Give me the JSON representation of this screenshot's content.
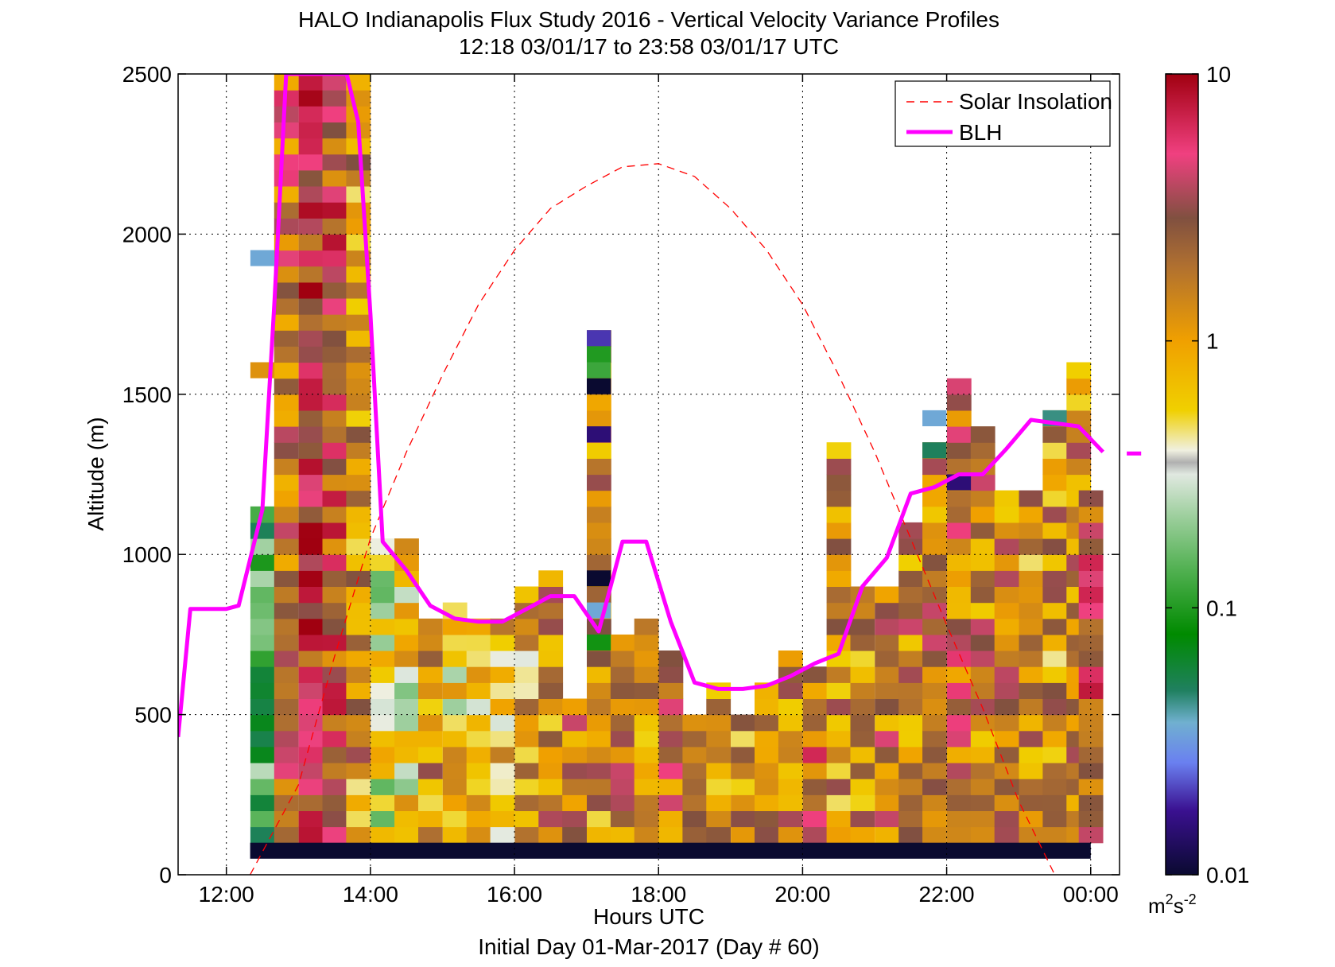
{
  "chart_data": {
    "type": "heatmap",
    "title_line1": "HALO Indianapolis Flux Study 2016 - Vertical Velocity Variance Profiles",
    "title_line2": "12:18 03/01/17 to 23:58 03/01/17  UTC",
    "xlabel": "Hours UTC",
    "xlabel2": "Initial Day 01-Mar-2017 (Day # 60)",
    "ylabel": "Altitude (m)",
    "xlim": [
      11.33,
      24.4
    ],
    "ylim": [
      0,
      2500
    ],
    "x_ticks": [
      12,
      14,
      16,
      18,
      20,
      22,
      24
    ],
    "x_tick_labels": [
      "12:00",
      "14:00",
      "16:00",
      "18:00",
      "20:00",
      "22:00",
      "00:00"
    ],
    "y_ticks": [
      0,
      500,
      1000,
      1500,
      2000,
      2500
    ],
    "y_tick_labels": [
      "0",
      "500",
      "1000",
      "1500",
      "2000",
      "2500"
    ],
    "grid": true,
    "legend_position": "top-right",
    "colorbar": {
      "scale": "log",
      "min": 0.01,
      "max": 10,
      "tick_values": [
        0.01,
        0.1,
        1,
        10
      ],
      "tick_labels": [
        "0.01",
        "0.1",
        "1",
        "10"
      ],
      "units_base": "m",
      "units_exp1": "2",
      "units_mid": "s",
      "units_exp2": "-2"
    },
    "bin_width_hours": 0.333,
    "bin_height_m": 50,
    "columns": [
      {
        "t": 12.5,
        "top": 1150,
        "val": 0.12
      },
      {
        "t": 12.83,
        "top": 2500,
        "val": 2.2
      },
      {
        "t": 13.17,
        "top": 2500,
        "val": 4.5
      },
      {
        "t": 13.5,
        "top": 2500,
        "val": 3.0
      },
      {
        "t": 13.83,
        "top": 2500,
        "val": 1.2
      },
      {
        "t": 14.17,
        "top": 1050,
        "val": 0.35
      },
      {
        "t": 14.5,
        "top": 1050,
        "val": 0.5
      },
      {
        "t": 14.83,
        "top": 800,
        "val": 1.2
      },
      {
        "t": 15.17,
        "top": 850,
        "val": 0.6
      },
      {
        "t": 15.5,
        "top": 800,
        "val": 0.7
      },
      {
        "t": 15.83,
        "top": 800,
        "val": 0.8
      },
      {
        "t": 16.17,
        "top": 900,
        "val": 0.9
      },
      {
        "t": 16.5,
        "top": 950,
        "val": 1.3
      },
      {
        "t": 16.83,
        "top": 550,
        "val": 1.6
      },
      {
        "t": 17.17,
        "top": 1700,
        "val": 1.4
      },
      {
        "t": 17.5,
        "top": 750,
        "val": 2.0
      },
      {
        "t": 17.83,
        "top": 800,
        "val": 1.1
      },
      {
        "t": 18.17,
        "top": 700,
        "val": 1.9
      },
      {
        "t": 18.5,
        "top": 500,
        "val": 2.2
      },
      {
        "t": 18.83,
        "top": 600,
        "val": 1.0
      },
      {
        "t": 19.17,
        "top": 500,
        "val": 1.2
      },
      {
        "t": 19.5,
        "top": 600,
        "val": 1.5
      },
      {
        "t": 19.83,
        "top": 700,
        "val": 1.6
      },
      {
        "t": 20.17,
        "top": 650,
        "val": 2.4
      },
      {
        "t": 20.5,
        "top": 1350,
        "val": 1.2
      },
      {
        "t": 20.83,
        "top": 900,
        "val": 1.3
      },
      {
        "t": 21.17,
        "top": 900,
        "val": 1.8
      },
      {
        "t": 21.5,
        "top": 1100,
        "val": 1.5
      },
      {
        "t": 21.83,
        "top": 1350,
        "val": 1.7
      },
      {
        "t": 22.17,
        "top": 1550,
        "val": 2.0
      },
      {
        "t": 22.5,
        "top": 1400,
        "val": 1.6
      },
      {
        "t": 22.83,
        "top": 1200,
        "val": 1.4
      },
      {
        "t": 23.17,
        "top": 1200,
        "val": 1.3
      },
      {
        "t": 23.5,
        "top": 1450,
        "val": 1.2
      },
      {
        "t": 23.83,
        "top": 1600,
        "val": 1.3
      },
      {
        "t": 24.0,
        "top": 1200,
        "val": 3.2
      }
    ],
    "noise_band": {
      "t0": 12.33,
      "t1": 24.0,
      "y0": 50,
      "y1": 100,
      "val": 0.01
    },
    "isolated_cells": [
      {
        "t": 17.17,
        "y": 1700,
        "val": 0.02
      },
      {
        "t": 17.17,
        "y": 1650,
        "val": 0.1
      },
      {
        "t": 17.17,
        "y": 1600,
        "val": 0.12
      },
      {
        "t": 17.17,
        "y": 1550,
        "val": 0.01
      },
      {
        "t": 17.17,
        "y": 1400,
        "val": 0.015
      },
      {
        "t": 17.17,
        "y": 950,
        "val": 0.01
      },
      {
        "t": 17.17,
        "y": 850,
        "val": 0.035
      },
      {
        "t": 17.17,
        "y": 750,
        "val": 0.09
      },
      {
        "t": 12.5,
        "y": 1950,
        "val": 0.035
      },
      {
        "t": 12.5,
        "y": 1600,
        "val": 1.2
      },
      {
        "t": 21.83,
        "y": 1450,
        "val": 0.035
      },
      {
        "t": 21.83,
        "y": 1350,
        "val": 0.05
      },
      {
        "t": 22.17,
        "y": 1250,
        "val": 0.015
      },
      {
        "t": 23.5,
        "y": 1450,
        "val": 0.045
      }
    ],
    "series": [
      {
        "name": "Solar Insolation",
        "style": "dashed",
        "color": "#ff0000",
        "x": [
          12.33,
          13.0,
          13.5,
          14.0,
          14.5,
          15.0,
          15.5,
          16.0,
          16.5,
          17.0,
          17.5,
          18.0,
          18.5,
          19.0,
          19.5,
          20.0,
          20.5,
          21.0,
          21.5,
          22.0,
          22.5,
          23.0,
          23.5,
          24.0
        ],
        "y": [
          0,
          280,
          680,
          1050,
          1320,
          1560,
          1780,
          1950,
          2080,
          2150,
          2210,
          2220,
          2180,
          2080,
          1950,
          1780,
          1560,
          1320,
          1050,
          780,
          520,
          230,
          0,
          -200
        ]
      },
      {
        "name": "BLH",
        "style": "solid",
        "color": "#ff00ff",
        "x": [
          11.33,
          11.5,
          12.0,
          12.17,
          12.5,
          12.67,
          12.83,
          13.0,
          13.17,
          13.5,
          13.67,
          13.83,
          14.0,
          14.17,
          14.5,
          14.83,
          15.17,
          15.5,
          15.83,
          16.17,
          16.5,
          16.83,
          17.17,
          17.5,
          17.83,
          18.17,
          18.5,
          18.83,
          19.17,
          19.5,
          19.83,
          20.17,
          20.5,
          20.83,
          21.17,
          21.5,
          21.83,
          22.17,
          22.5,
          22.83,
          23.17,
          23.5,
          23.83,
          24.17
        ],
        "y": [
          430,
          830,
          830,
          840,
          1140,
          1800,
          2500,
          2500,
          2500,
          2500,
          2500,
          2350,
          1750,
          1040,
          950,
          840,
          800,
          790,
          790,
          830,
          870,
          870,
          760,
          1040,
          1040,
          790,
          600,
          580,
          580,
          590,
          620,
          660,
          690,
          900,
          990,
          1190,
          1210,
          1250,
          1250,
          1330,
          1420,
          1410,
          1400,
          1320
        ]
      }
    ],
    "blh_tail": {
      "x": [
        24.5,
        24.7
      ],
      "y": [
        1315,
        1315
      ]
    }
  },
  "colors": {
    "background": "#ffffff",
    "axes": "#000000",
    "grid": "#000000",
    "solar": "#ff0000",
    "blh": "#ff00ff"
  }
}
